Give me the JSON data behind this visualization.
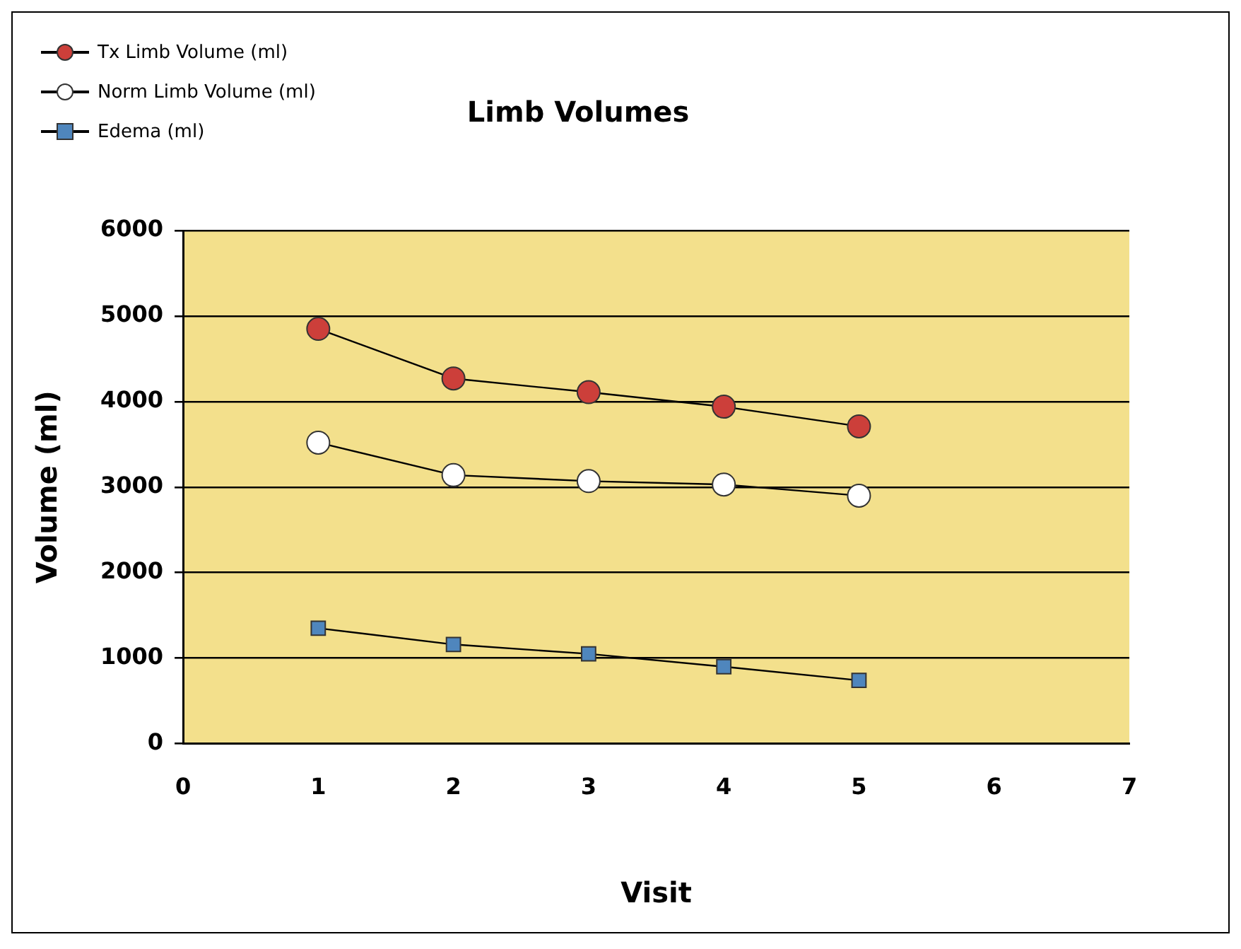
{
  "chart_data": {
    "type": "line",
    "title": "Limb Volumes",
    "xlabel": "Visit",
    "ylabel": "Volume (ml)",
    "x": [
      1,
      2,
      3,
      4,
      5
    ],
    "series": [
      {
        "name": "Tx Limb Volume (ml)",
        "color": "#cc3f3a",
        "marker": "circle",
        "values": [
          4850,
          4270,
          4110,
          3940,
          3710
        ]
      },
      {
        "name": "Norm Limb Volume (ml)",
        "color": "#ffffff",
        "marker": "circle",
        "values": [
          3520,
          3140,
          3070,
          3030,
          2900
        ]
      },
      {
        "name": "Edema (ml)",
        "color": "#4f86bd",
        "marker": "square",
        "values": [
          1350,
          1160,
          1050,
          900,
          740
        ]
      }
    ],
    "xlim": [
      0,
      7
    ],
    "xticks": [
      0,
      1,
      2,
      3,
      4,
      5,
      6,
      7
    ],
    "ylim": [
      0,
      6000
    ],
    "yticks": [
      0,
      1000,
      2000,
      3000,
      4000,
      5000,
      6000
    ],
    "grid": "y",
    "legend": "top left",
    "line_style": "solid"
  }
}
